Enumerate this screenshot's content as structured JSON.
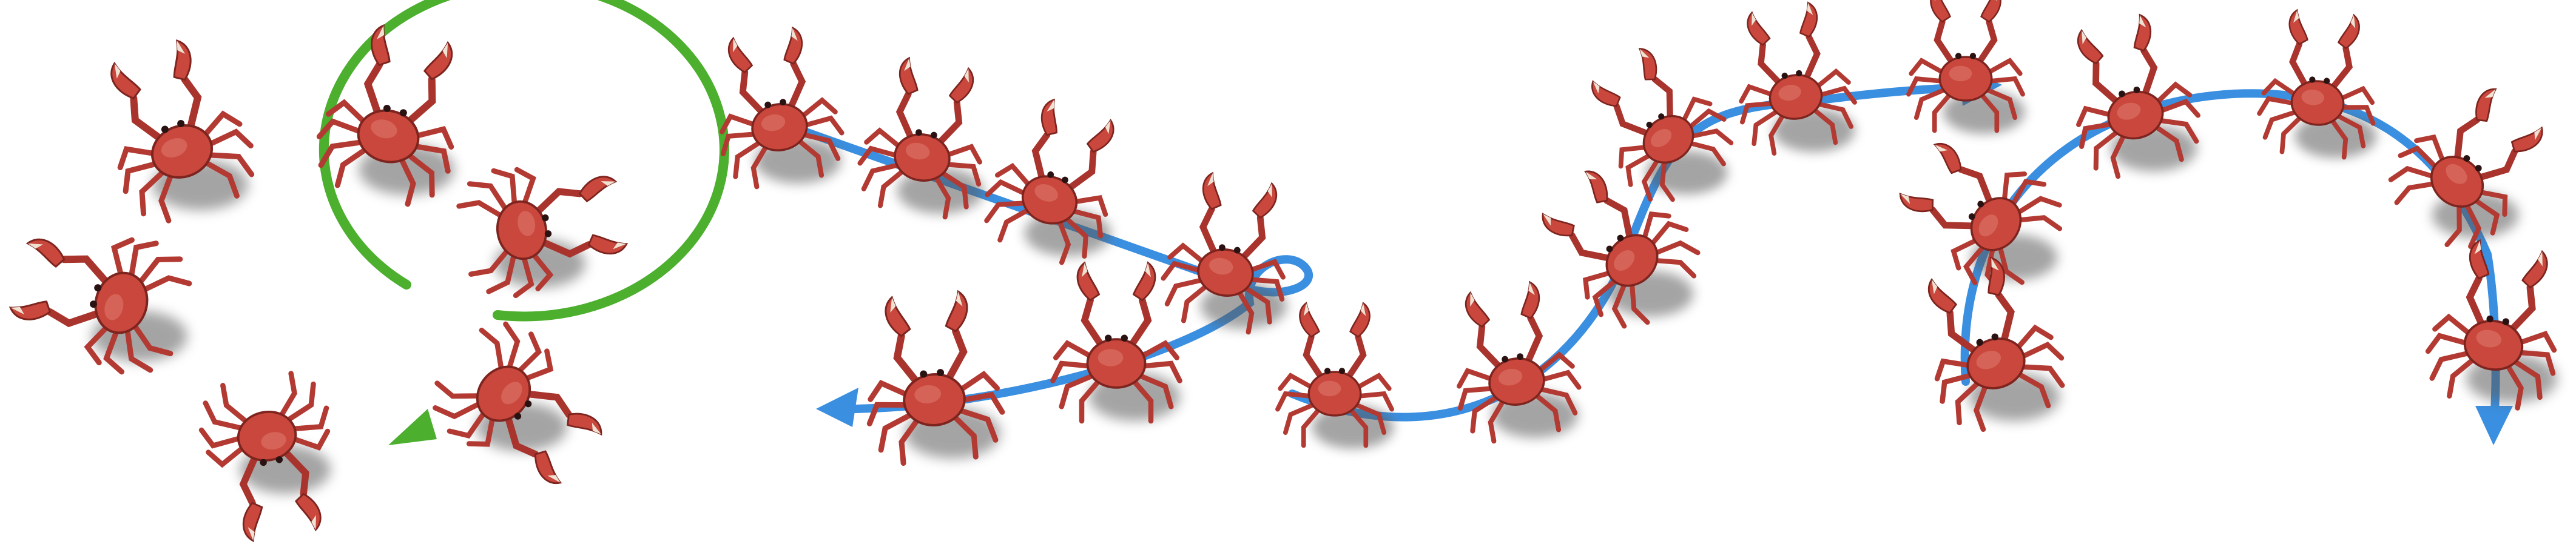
{
  "figure": {
    "background": "#ffffff",
    "paths": [
      {
        "name": "circular-path",
        "color": "#4caf2e",
        "shape": "circle-clockwise",
        "arrowhead": "lower-right",
        "crab_count": 6
      },
      {
        "name": "zigzag-path",
        "color": "#3a8fe0",
        "shape": "diagonal-then-loop-then-leftward",
        "arrowhead": "left",
        "crab_count": 6
      },
      {
        "name": "s-curve-path",
        "color": "#3a8fe0",
        "shape": "s-curve-rising",
        "arrowhead": "right",
        "crab_count": 6
      },
      {
        "name": "arch-path",
        "color": "#3a8fe0",
        "shape": "inverted-u",
        "arrowhead": "down",
        "crab_count": 6
      }
    ],
    "crab_colors": {
      "shell": "#c9473c",
      "shell_dark": "#8e2a25",
      "claw_tip": "#efe2d2",
      "shadow": "#6d6d6d"
    }
  }
}
